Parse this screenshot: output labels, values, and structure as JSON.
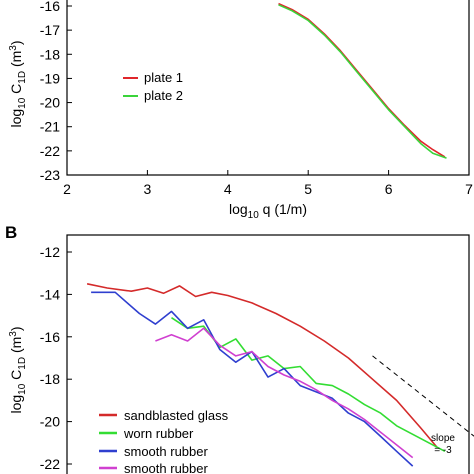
{
  "chart_data": [
    {
      "panel": "",
      "type": "line",
      "xlabel": "log₁₀ q  (1/m)",
      "ylabel": "log₁₀ C₁D  (m³)",
      "xlim": [
        2,
        7
      ],
      "ylim": [
        -23,
        -15.5
      ],
      "xticks": [
        "2",
        "3",
        "4",
        "5",
        "6",
        "7"
      ],
      "yticks": [
        "-16",
        "-17",
        "-18",
        "-19",
        "-20",
        "-21",
        "-22",
        "-23"
      ],
      "legend_position": "left",
      "series": [
        {
          "name": "plate 1",
          "color": "#e0262b",
          "x": [
            4.63,
            4.8,
            5.0,
            5.2,
            5.4,
            5.6,
            5.8,
            6.0,
            6.2,
            6.4,
            6.55,
            6.7
          ],
          "y": [
            -15.9,
            -16.15,
            -16.55,
            -17.15,
            -17.85,
            -18.65,
            -19.45,
            -20.25,
            -20.95,
            -21.6,
            -21.95,
            -22.25
          ]
        },
        {
          "name": "plate 2",
          "color": "#3ad43a",
          "x": [
            4.63,
            4.8,
            5.0,
            5.2,
            5.4,
            5.6,
            5.8,
            6.0,
            6.2,
            6.4,
            6.55,
            6.72
          ],
          "y": [
            -15.95,
            -16.2,
            -16.6,
            -17.2,
            -17.9,
            -18.7,
            -19.5,
            -20.3,
            -21.0,
            -21.7,
            -22.1,
            -22.3
          ]
        }
      ]
    },
    {
      "panel": "B",
      "type": "line",
      "xlabel": "",
      "ylabel": "log₁₀ C₁D  (m³)",
      "xlim": [
        2,
        7
      ],
      "ylim": [
        -22.3,
        -11.7
      ],
      "yticks": [
        "-12",
        "-14",
        "-16",
        "-18",
        "-20",
        "-22"
      ],
      "legend_position": "bottom-left",
      "series": [
        {
          "name": "sandblasted glass",
          "color": "#d42a2a",
          "x": [
            2.25,
            2.5,
            2.8,
            3.0,
            3.2,
            3.4,
            3.6,
            3.8,
            4.0,
            4.3,
            4.6,
            4.9,
            5.2,
            5.5,
            5.8,
            6.1,
            6.4,
            6.6
          ],
          "y": [
            -13.5,
            -13.7,
            -13.85,
            -13.7,
            -13.95,
            -13.6,
            -14.1,
            -13.9,
            -14.05,
            -14.4,
            -14.9,
            -15.5,
            -16.2,
            -17.0,
            -18.0,
            -19.0,
            -20.3,
            -21.2
          ]
        },
        {
          "name": "worn rubber",
          "color": "#33dd33",
          "x": [
            3.3,
            3.5,
            3.7,
            3.9,
            4.1,
            4.3,
            4.5,
            4.7,
            4.9,
            5.1,
            5.3,
            5.5,
            5.7,
            5.9,
            6.1,
            6.3,
            6.5,
            6.7
          ],
          "y": [
            -15.1,
            -15.6,
            -15.5,
            -16.5,
            -16.1,
            -17.1,
            -16.9,
            -17.5,
            -17.4,
            -18.2,
            -18.3,
            -18.7,
            -19.2,
            -19.6,
            -20.2,
            -20.6,
            -21.0,
            -21.4
          ]
        },
        {
          "name": "smooth rubber",
          "color": "#2f3fcf",
          "x": [
            2.3,
            2.6,
            2.9,
            3.1,
            3.3,
            3.5,
            3.7,
            3.9,
            4.1,
            4.3,
            4.5,
            4.7,
            4.9,
            5.1,
            5.3,
            5.5,
            5.7,
            5.9,
            6.1,
            6.3
          ],
          "y": [
            -13.9,
            -13.9,
            -14.9,
            -15.4,
            -14.8,
            -15.6,
            -15.2,
            -16.6,
            -17.2,
            -16.7,
            -17.9,
            -17.5,
            -18.3,
            -18.6,
            -18.9,
            -19.6,
            -20.0,
            -20.7,
            -21.4,
            -22.1
          ]
        },
        {
          "name": "smooth rubber",
          "color": "#d040d0",
          "x": [
            3.1,
            3.3,
            3.5,
            3.7,
            3.9,
            4.1,
            4.3,
            4.5,
            4.7,
            4.9,
            5.1,
            5.3,
            5.5,
            5.7,
            5.9,
            6.1,
            6.3
          ],
          "y": [
            -16.2,
            -15.9,
            -16.2,
            -15.6,
            -16.4,
            -16.9,
            -16.7,
            -17.4,
            -17.8,
            -18.1,
            -18.5,
            -19.0,
            -19.4,
            -19.9,
            -20.5,
            -21.1,
            -21.7
          ]
        }
      ],
      "reference_line": {
        "label_lines": [
          "slope",
          "= -3"
        ],
        "x": [
          5.8,
          7.3
        ],
        "y": [
          -16.9,
          -21.4
        ]
      }
    }
  ]
}
